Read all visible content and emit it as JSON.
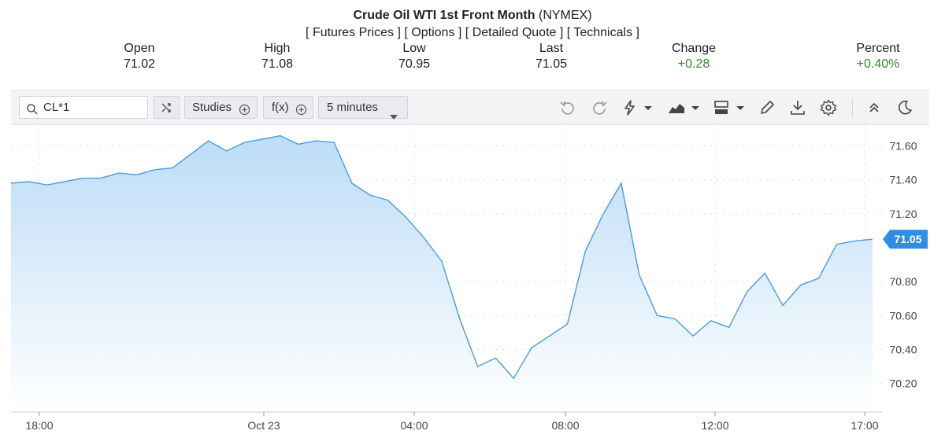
{
  "header": {
    "title_bold": "Crude Oil WTI 1st Front Month",
    "title_exchange": "(NYMEX)",
    "links": [
      "Futures Prices",
      "Options",
      "Detailed Quote",
      "Technicals"
    ]
  },
  "quote": {
    "open_label": "Open",
    "open": "71.02",
    "high_label": "High",
    "high": "71.08",
    "low_label": "Low",
    "low": "70.95",
    "last_label": "Last",
    "last": "71.05",
    "change_label": "Change",
    "change": "+0.28",
    "percent_label": "Percent",
    "percent": "+0.40%"
  },
  "toolbar": {
    "symbol": "CL*1",
    "studies_label": "Studies",
    "fx_label": "f(x)",
    "interval_label": "5 minutes",
    "icons": [
      "search-icon",
      "compare-icon",
      "add-icon",
      "chevron-down-icon",
      "undo-icon",
      "redo-icon",
      "lightning-icon",
      "area-chart-icon",
      "layout-icon",
      "pencil-icon",
      "download-icon",
      "gear-icon",
      "collapse-icon",
      "moon-icon"
    ]
  },
  "colors": {
    "line": "#4a9be0",
    "fill_top": "#bcdcf7",
    "fill_bottom": "#ffffff",
    "last_tag": "#2f8de4",
    "positive": "#2e8b2e"
  },
  "chart_data": {
    "type": "area",
    "x_tick_labels": [
      "18:00",
      "Oct 23",
      "04:00",
      "08:00",
      "12:00",
      "17:00"
    ],
    "y_tick_labels": [
      "71.60",
      "71.40",
      "71.20",
      "70.80",
      "70.60",
      "70.40",
      "70.20"
    ],
    "ylim": [
      70.05,
      71.7
    ],
    "last_value_label": "71.05",
    "grid": true,
    "time": [
      "17:00",
      "17:30",
      "18:00",
      "18:30",
      "19:00",
      "19:30",
      "20:00",
      "20:30",
      "21:00",
      "21:30",
      "22:00",
      "22:30",
      "23:00",
      "23:30",
      "00:00",
      "00:30",
      "01:00",
      "01:30",
      "02:00",
      "02:30",
      "03:00",
      "03:30",
      "04:00",
      "04:30",
      "05:00",
      "05:30",
      "06:00",
      "06:30",
      "07:00",
      "07:30",
      "08:00",
      "08:30",
      "09:00",
      "09:30",
      "10:00",
      "10:30",
      "11:00",
      "11:30",
      "12:00",
      "12:30",
      "13:00",
      "13:30",
      "14:00",
      "14:30",
      "15:00",
      "15:30",
      "16:00",
      "16:30",
      "17:00"
    ],
    "values": [
      71.38,
      71.39,
      71.37,
      71.39,
      71.41,
      71.41,
      71.44,
      71.43,
      71.46,
      71.47,
      71.55,
      71.63,
      71.57,
      71.62,
      71.64,
      71.66,
      71.61,
      71.63,
      71.62,
      71.38,
      71.31,
      71.28,
      71.18,
      71.06,
      70.92,
      70.58,
      70.3,
      70.35,
      70.23,
      70.41,
      70.48,
      70.55,
      70.98,
      71.2,
      71.38,
      70.84,
      70.6,
      70.58,
      70.48,
      70.57,
      70.53,
      70.74,
      70.85,
      70.66,
      70.78,
      70.82,
      71.02,
      71.04,
      71.05
    ]
  }
}
